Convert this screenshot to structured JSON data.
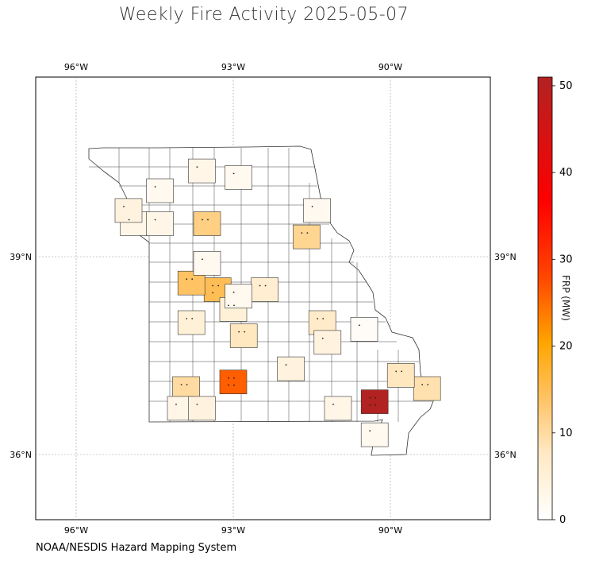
{
  "title": "Weekly Fire Activity 2025-05-07",
  "source": "NOAA/NESDIS Hazard Mapping System",
  "colorbar": {
    "label": "FRP (MW)",
    "min": 0,
    "max": 51,
    "ticks": [
      0,
      10,
      20,
      30,
      40,
      50
    ],
    "tick_labels": [
      "0",
      "10",
      "20",
      "30",
      "40",
      "50"
    ],
    "colors": [
      "#ffffff",
      "#ffe9c4",
      "#ffc468",
      "#ffa500",
      "#ff4500",
      "#ff0000",
      "#b22222"
    ]
  },
  "map": {
    "lon_ticks": [
      "96°W",
      "93°W",
      "90°W"
    ],
    "lat_ticks": [
      "39°N",
      "36°N"
    ],
    "extent": {
      "lon_min": -96.8,
      "lon_max": -88.1,
      "lat_min": 34.8,
      "lat_max": 41.5
    },
    "grid": true
  },
  "chart_data": {
    "type": "choropleth",
    "region": "Missouri counties",
    "value_name": "FRP (MW)",
    "counties_with_fire": [
      {
        "lon": -93.0,
        "lat": 37.1,
        "frp": 26
      },
      {
        "lon": -90.3,
        "lat": 36.8,
        "frp": 51
      },
      {
        "lon": -93.3,
        "lat": 38.5,
        "frp": 15
      },
      {
        "lon": -93.8,
        "lat": 38.6,
        "frp": 14
      },
      {
        "lon": -93.5,
        "lat": 39.5,
        "frp": 12
      },
      {
        "lon": -91.6,
        "lat": 39.3,
        "frp": 11
      },
      {
        "lon": -93.9,
        "lat": 37.0,
        "frp": 10
      },
      {
        "lon": -89.3,
        "lat": 37.0,
        "frp": 9
      },
      {
        "lon": -89.8,
        "lat": 37.2,
        "frp": 8
      },
      {
        "lon": -92.8,
        "lat": 37.8,
        "frp": 8
      },
      {
        "lon": -91.3,
        "lat": 38.0,
        "frp": 7
      },
      {
        "lon": -93.0,
        "lat": 38.2,
        "frp": 5
      },
      {
        "lon": -93.8,
        "lat": 38.0,
        "frp": 5
      },
      {
        "lon": -92.4,
        "lat": 38.5,
        "frp": 6
      },
      {
        "lon": -91.9,
        "lat": 37.3,
        "frp": 4
      },
      {
        "lon": -91.2,
        "lat": 37.7,
        "frp": 4
      },
      {
        "lon": -91.0,
        "lat": 36.7,
        "frp": 3
      },
      {
        "lon": -94.0,
        "lat": 36.7,
        "frp": 3
      },
      {
        "lon": -93.6,
        "lat": 36.7,
        "frp": 4
      },
      {
        "lon": -94.9,
        "lat": 39.5,
        "frp": 3
      },
      {
        "lon": -95.0,
        "lat": 39.7,
        "frp": 4
      },
      {
        "lon": -94.4,
        "lat": 40.0,
        "frp": 2
      },
      {
        "lon": -93.6,
        "lat": 40.3,
        "frp": 3
      },
      {
        "lon": -92.9,
        "lat": 40.2,
        "frp": 2
      },
      {
        "lon": -94.4,
        "lat": 39.5,
        "frp": 3
      },
      {
        "lon": -91.4,
        "lat": 39.7,
        "frp": 2
      },
      {
        "lon": -90.3,
        "lat": 36.3,
        "frp": 2
      },
      {
        "lon": -93.5,
        "lat": 38.9,
        "frp": 2
      },
      {
        "lon": -92.9,
        "lat": 38.4,
        "frp": 2
      },
      {
        "lon": -90.5,
        "lat": 37.9,
        "frp": 1
      }
    ]
  }
}
